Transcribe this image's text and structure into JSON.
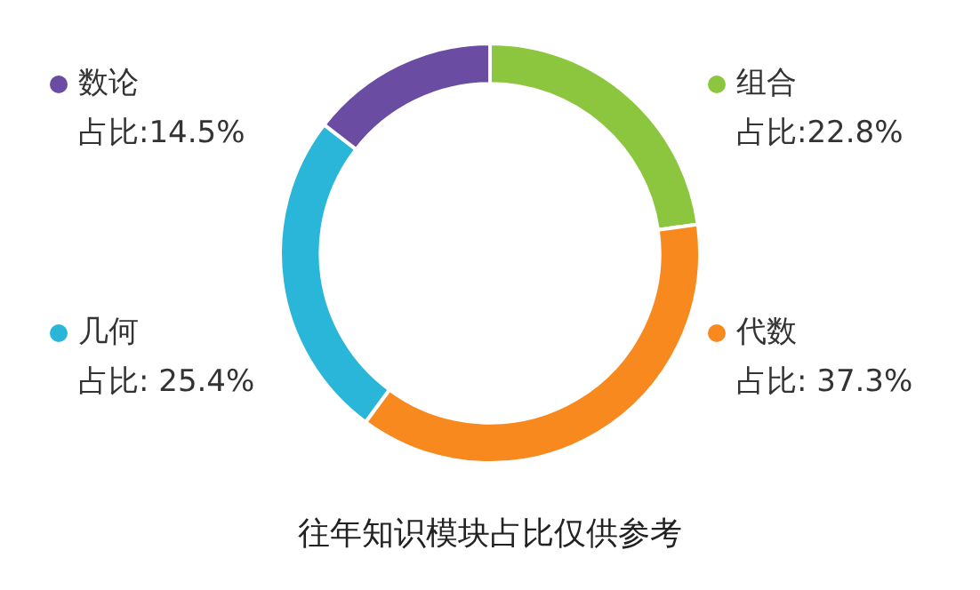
{
  "chart_data": {
    "type": "donut",
    "title": "往年知识模块占比仅供参考",
    "categories": [
      "组合",
      "代数",
      "几何",
      "数论"
    ],
    "values": [
      22.8,
      37.3,
      25.4,
      14.5
    ],
    "colors": [
      "#8cc63f",
      "#f7891f",
      "#29b6d8",
      "#6a4ca3"
    ],
    "legend": "top left",
    "value_labels": [
      "占比:22.8%",
      "占比: 37.3%",
      "占比: 25.4%",
      "占比:14.5%"
    ]
  }
}
